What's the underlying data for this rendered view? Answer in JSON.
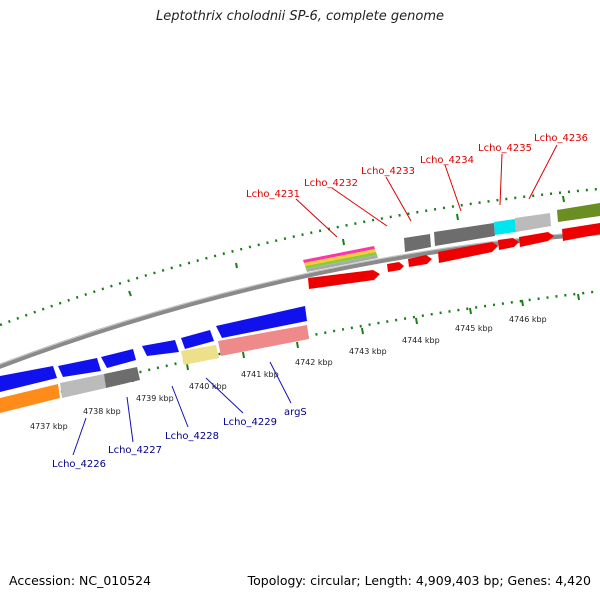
{
  "title": "Leptothrix cholodnii SP-6, complete genome",
  "accession": "Accession: NC_010524",
  "summary": "Topology: circular; Length: 4,909,403 bp; Genes: 4,420",
  "colors": {
    "forward_label": "#dd0000",
    "reverse_label": "#00008b",
    "tick": "#1a7f1a",
    "backbone": "#8c8c8c"
  },
  "kbp_labels": [
    "4737 kbp",
    "4738 kbp",
    "4739 kbp",
    "4740 kbp",
    "4741 kbp",
    "4742 kbp",
    "4743 kbp",
    "4744 kbp",
    "4745 kbp",
    "4746 kbp"
  ],
  "forward_gene_labels": [
    "Lcho_4231",
    "Lcho_4232",
    "Lcho_4233",
    "Lcho_4234",
    "Lcho_4235",
    "Lcho_4236"
  ],
  "reverse_gene_labels": [
    "Lcho_4226",
    "Lcho_4227",
    "Lcho_4228",
    "Lcho_4229",
    "argS"
  ]
}
